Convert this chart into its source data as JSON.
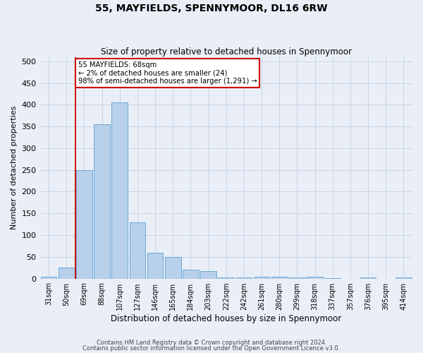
{
  "title1": "55, MAYFIELDS, SPENNYMOOR, DL16 6RW",
  "title2": "Size of property relative to detached houses in Spennymoor",
  "xlabel": "Distribution of detached houses by size in Spennymoor",
  "ylabel": "Number of detached properties",
  "categories": [
    "31sqm",
    "50sqm",
    "69sqm",
    "88sqm",
    "107sqm",
    "127sqm",
    "146sqm",
    "165sqm",
    "184sqm",
    "203sqm",
    "222sqm",
    "242sqm",
    "261sqm",
    "280sqm",
    "299sqm",
    "318sqm",
    "337sqm",
    "357sqm",
    "376sqm",
    "395sqm",
    "414sqm"
  ],
  "values": [
    5,
    25,
    250,
    355,
    405,
    130,
    60,
    50,
    20,
    18,
    3,
    2,
    5,
    5,
    2,
    5,
    1,
    0,
    2,
    0,
    2
  ],
  "bar_color": "#b8d0ea",
  "bar_edge_color": "#5a9fd4",
  "vline_x_index": 2,
  "annotation_text": "55 MAYFIELDS: 68sqm\n← 2% of detached houses are smaller (24)\n98% of semi-detached houses are larger (1,291) →",
  "annotation_box_color": "#ffffff",
  "annotation_box_edge": "#cc0000",
  "vline_color": "#cc0000",
  "footnote1": "Contains HM Land Registry data © Crown copyright and database right 2024.",
  "footnote2": "Contains public sector information licensed under the Open Government Licence v3.0.",
  "ylim": [
    0,
    510
  ],
  "yticks": [
    0,
    50,
    100,
    150,
    200,
    250,
    300,
    350,
    400,
    450,
    500
  ],
  "grid_color": "#c8d4e8",
  "bg_color": "#eaeff7",
  "fig_width": 6.0,
  "fig_height": 5.0,
  "fig_dpi": 100
}
